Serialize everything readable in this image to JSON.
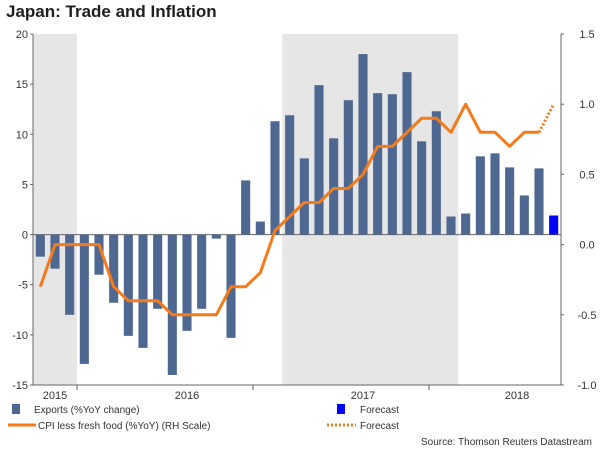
{
  "title": "Japan: Trade and Inflation",
  "source": "Source: Thomson Reuters Datastream",
  "colors": {
    "exports": "#4f6891",
    "exports_forecast": "#0000ff",
    "cpi": "#f57a1a",
    "shade": "#e6e6e6"
  },
  "chart_data": {
    "type": "bar",
    "title": "Japan: Trade and Inflation",
    "y_left": {
      "ylim": [
        -15,
        20
      ],
      "ticks": [
        "-15",
        "-10",
        "-5",
        "0",
        "5",
        "10",
        "15",
        "20"
      ]
    },
    "y_right": {
      "ylim": [
        -1.0,
        1.5
      ],
      "ticks": [
        "-1.0",
        "-0.5",
        "0.0",
        "0.5",
        "1.0",
        "1.5"
      ]
    },
    "x_labels": [
      "2015",
      "2016",
      "2017",
      "2018"
    ],
    "shaded_periods": [
      "2015",
      "2017"
    ],
    "series": [
      {
        "name": "Exports (%YoY change)",
        "type": "bar",
        "axis": "left",
        "values": [
          -2.2,
          -3.4,
          -8.0,
          -12.9,
          -4.0,
          -6.8,
          -10.1,
          -11.3,
          -7.4,
          -14.0,
          -9.6,
          -7.4,
          -0.4,
          -10.3,
          5.4,
          1.3,
          11.3,
          11.9,
          7.6,
          14.9,
          9.6,
          13.4,
          18.0,
          14.1,
          14.0,
          16.2,
          9.3,
          12.3,
          1.8,
          2.1,
          7.8,
          8.1,
          6.7,
          3.9,
          6.6,
          null
        ],
        "forecast": [
          null,
          null,
          null,
          null,
          null,
          null,
          null,
          null,
          null,
          null,
          null,
          null,
          null,
          null,
          null,
          null,
          null,
          null,
          null,
          null,
          null,
          null,
          null,
          null,
          null,
          null,
          null,
          null,
          null,
          null,
          null,
          null,
          null,
          null,
          null,
          1.9
        ]
      },
      {
        "name": "CPI less fresh food (%YoY) (RH Scale)",
        "type": "line",
        "axis": "right",
        "values": [
          -0.3,
          0.0,
          0.0,
          0.0,
          0.0,
          -0.3,
          -0.4,
          -0.4,
          -0.4,
          -0.5,
          -0.5,
          -0.5,
          -0.5,
          -0.3,
          -0.3,
          -0.2,
          0.1,
          0.2,
          0.3,
          0.3,
          0.4,
          0.4,
          0.5,
          0.7,
          0.7,
          0.8,
          0.9,
          0.9,
          0.8,
          1.0,
          0.8,
          0.8,
          0.7,
          0.8,
          0.8,
          null
        ],
        "forecast": [
          null,
          null,
          null,
          null,
          null,
          null,
          null,
          null,
          null,
          null,
          null,
          null,
          null,
          null,
          null,
          null,
          null,
          null,
          null,
          null,
          null,
          null,
          null,
          null,
          null,
          null,
          null,
          null,
          null,
          null,
          null,
          null,
          null,
          null,
          0.8,
          1.0
        ]
      }
    ],
    "legend": {
      "placement": "bottom",
      "items": [
        {
          "label": "Exports (%YoY change)",
          "kind": "bar",
          "color": "#4f6891"
        },
        {
          "label": "Forecast",
          "kind": "bar",
          "color": "#0000ff"
        },
        {
          "label": "CPI less fresh food (%YoY) (RH Scale)",
          "kind": "line",
          "color": "#f57a1a"
        },
        {
          "label": "Forecast",
          "kind": "dotted",
          "color": "#f57a1a"
        }
      ]
    }
  }
}
